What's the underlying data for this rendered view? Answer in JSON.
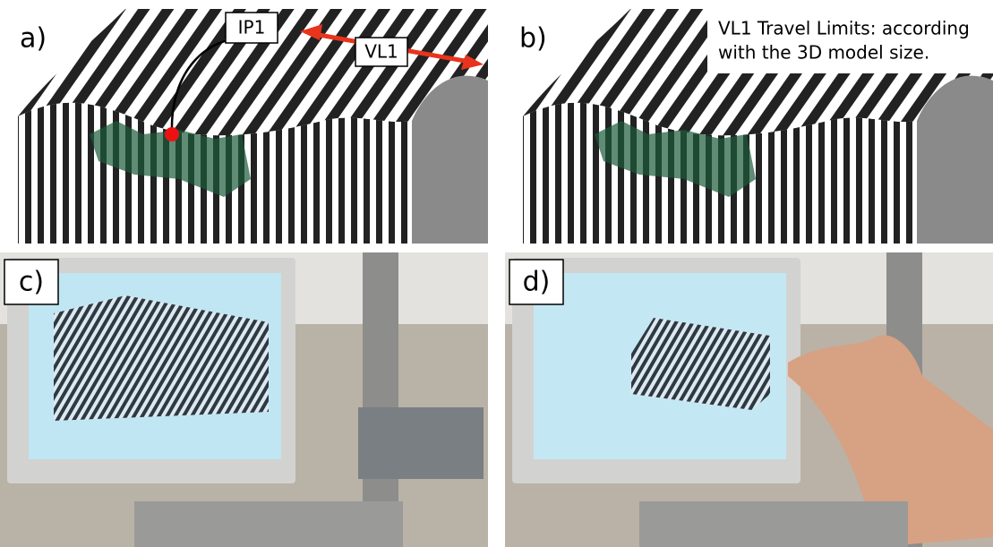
{
  "panels": [
    {
      "label": "a)",
      "annotations": [
        "IP1",
        "VL1"
      ]
    },
    {
      "label": "b)",
      "note": [
        "VL1 Travel Limits: according",
        "with the 3D model size."
      ]
    },
    {
      "label": "c)"
    },
    {
      "label": "d)"
    }
  ]
}
